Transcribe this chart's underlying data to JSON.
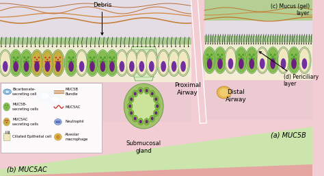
{
  "figsize": [
    4.74,
    2.57
  ],
  "dpi": 100,
  "bg_pink": "#f2cdd3",
  "bg_lavender": "#e8d8e8",
  "green_stripe": "#8dc870",
  "cell_cream": "#f5f0d8",
  "cell_green_body": "#90c060",
  "cell_nucleus_purple": "#6b2080",
  "cell_muc5ac_body": "#c8b040",
  "cell_outer_green": "#b0d880",
  "mucus_gel_green": "#a0c870",
  "top_light_blue": "#d8eef8",
  "strand_brown": "#c07830",
  "strand_orange": "#e09040",
  "green_band_light": "#c8e8a8",
  "red_band_light": "#e8a0a0",
  "labels": {
    "debris": "Debris",
    "proximal": "Proximal\nAirway",
    "submucosal": "Submucosal\ngland",
    "distal": "Distal\nAirway",
    "muc5b_a": "(a) MUC5B",
    "muc5ac_b": "(b) MUC5AC",
    "mucus_gel_c": "(c) Mucus (gel)\nlayer",
    "periciliary_d": "(d) Periciliary\nlayer"
  }
}
